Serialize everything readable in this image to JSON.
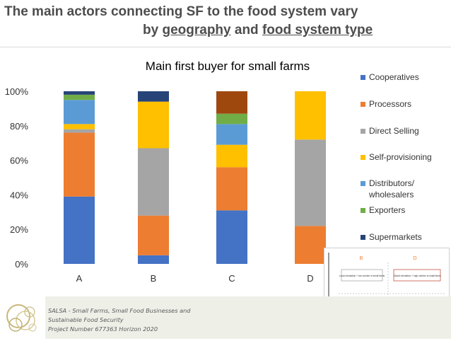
{
  "slide": {
    "title_line1": "The main actors connecting SF to the food system vary",
    "title_by": "by",
    "title_geo": "geography",
    "title_and": "and",
    "title_fst": "food system type"
  },
  "chart_data": {
    "type": "bar",
    "stacked": true,
    "title": "Main first buyer for small farms",
    "categories": [
      "A",
      "B",
      "C",
      "D"
    ],
    "ylim": [
      0,
      100
    ],
    "yticks": [
      "0%",
      "20%",
      "40%",
      "60%",
      "80%",
      "100%"
    ],
    "legend_position": "right",
    "grid": false,
    "series": [
      {
        "name": "Cooperatives",
        "color": "#4472c4",
        "values": [
          39,
          5,
          31,
          0
        ]
      },
      {
        "name": "Processors",
        "color": "#ed7d31",
        "values": [
          37,
          23,
          25,
          22
        ]
      },
      {
        "name": "Direct Selling",
        "color": "#a5a5a5",
        "values": [
          2,
          39,
          0,
          50
        ]
      },
      {
        "name": "Self-provisioning",
        "color": "#ffc000",
        "values": [
          3,
          27,
          13,
          28
        ]
      },
      {
        "name": "Distributors/ wholesalers",
        "color": "#5b9bd5",
        "values": [
          14,
          0,
          12,
          0
        ]
      },
      {
        "name": "Exporters",
        "color": "#70ad47",
        "values": [
          3,
          0,
          6,
          0
        ]
      },
      {
        "name": "Supermarkets",
        "color": "#264478",
        "values": [
          2,
          6,
          0,
          0
        ]
      },
      {
        "name": "",
        "color": "#9e480e",
        "values": [
          0,
          0,
          13,
          0
        ]
      }
    ]
  },
  "inset": {
    "q_b": "B",
    "q_d": "D",
    "q_a": "A",
    "q_c": "C",
    "box_tl": "Local orientation + low number of small farms",
    "box_tr": "Global orientation + high number of small farms",
    "box_bl": "Export-oriented + low number of small farms",
    "box_br": "Local orientation + high number of small farms"
  },
  "footer": {
    "line1": "SALSA - Small Farms, Small Food Businesses and",
    "line2": "Sustainable Food Security",
    "line3": "Project Number 677363 Horizon 2020"
  }
}
